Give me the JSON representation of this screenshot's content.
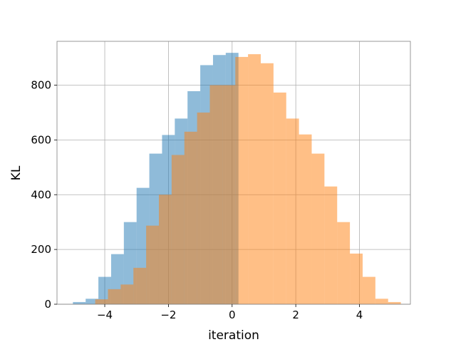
{
  "chart_data": {
    "type": "bar",
    "subtype": "histogram",
    "title": "",
    "xlabel": "iteration",
    "ylabel": "KL",
    "xlim": [
      -5.5,
      5.6
    ],
    "ylim": [
      0,
      960
    ],
    "xticks": [
      -4,
      -2,
      0,
      2,
      4
    ],
    "xtick_labels": [
      "−4",
      "−2",
      "0",
      "2",
      "4"
    ],
    "yticks": [
      0,
      200,
      400,
      600,
      800
    ],
    "ytick_labels": [
      "0",
      "200",
      "400",
      "600",
      "800"
    ],
    "grid": true,
    "legend": false,
    "series": [
      {
        "color": "#1f77b4",
        "opacity": 0.5,
        "bins": [
          {
            "x0": -5.0,
            "x1": -4.6,
            "y": 8
          },
          {
            "x0": -4.6,
            "x1": -4.2,
            "y": 20
          },
          {
            "x0": -4.2,
            "x1": -3.8,
            "y": 100
          },
          {
            "x0": -3.8,
            "x1": -3.4,
            "y": 183
          },
          {
            "x0": -3.4,
            "x1": -3.0,
            "y": 300
          },
          {
            "x0": -3.0,
            "x1": -2.6,
            "y": 425
          },
          {
            "x0": -2.6,
            "x1": -2.2,
            "y": 550
          },
          {
            "x0": -2.2,
            "x1": -1.8,
            "y": 618
          },
          {
            "x0": -1.8,
            "x1": -1.4,
            "y": 678
          },
          {
            "x0": -1.4,
            "x1": -1.0,
            "y": 778
          },
          {
            "x0": -1.0,
            "x1": -0.6,
            "y": 873
          },
          {
            "x0": -0.6,
            "x1": -0.2,
            "y": 910
          },
          {
            "x0": -0.2,
            "x1": 0.2,
            "y": 918
          }
        ]
      },
      {
        "color": "#ff7f0e",
        "opacity": 0.5,
        "bins": [
          {
            "x0": -4.3,
            "x1": -3.9,
            "y": 18
          },
          {
            "x0": -3.9,
            "x1": -3.5,
            "y": 55
          },
          {
            "x0": -3.5,
            "x1": -3.1,
            "y": 72
          },
          {
            "x0": -3.1,
            "x1": -2.7,
            "y": 133
          },
          {
            "x0": -2.7,
            "x1": -2.3,
            "y": 287
          },
          {
            "x0": -2.3,
            "x1": -1.9,
            "y": 400
          },
          {
            "x0": -1.9,
            "x1": -1.5,
            "y": 545
          },
          {
            "x0": -1.5,
            "x1": -1.1,
            "y": 630
          },
          {
            "x0": -1.1,
            "x1": -0.7,
            "y": 700
          },
          {
            "x0": -0.7,
            "x1": -0.3,
            "y": 800
          },
          {
            "x0": -0.3,
            "x1": 0.1,
            "y": 800
          },
          {
            "x0": 0.1,
            "x1": 0.5,
            "y": 903
          },
          {
            "x0": 0.5,
            "x1": 0.9,
            "y": 913
          },
          {
            "x0": 0.9,
            "x1": 1.3,
            "y": 880
          },
          {
            "x0": 1.3,
            "x1": 1.7,
            "y": 773
          },
          {
            "x0": 1.7,
            "x1": 2.1,
            "y": 678
          },
          {
            "x0": 2.1,
            "x1": 2.5,
            "y": 620
          },
          {
            "x0": 2.5,
            "x1": 2.9,
            "y": 550
          },
          {
            "x0": 2.9,
            "x1": 3.3,
            "y": 430
          },
          {
            "x0": 3.3,
            "x1": 3.7,
            "y": 300
          },
          {
            "x0": 3.7,
            "x1": 4.1,
            "y": 185
          },
          {
            "x0": 4.1,
            "x1": 4.5,
            "y": 100
          },
          {
            "x0": 4.5,
            "x1": 4.9,
            "y": 20
          },
          {
            "x0": 4.9,
            "x1": 5.3,
            "y": 8
          }
        ]
      }
    ]
  }
}
